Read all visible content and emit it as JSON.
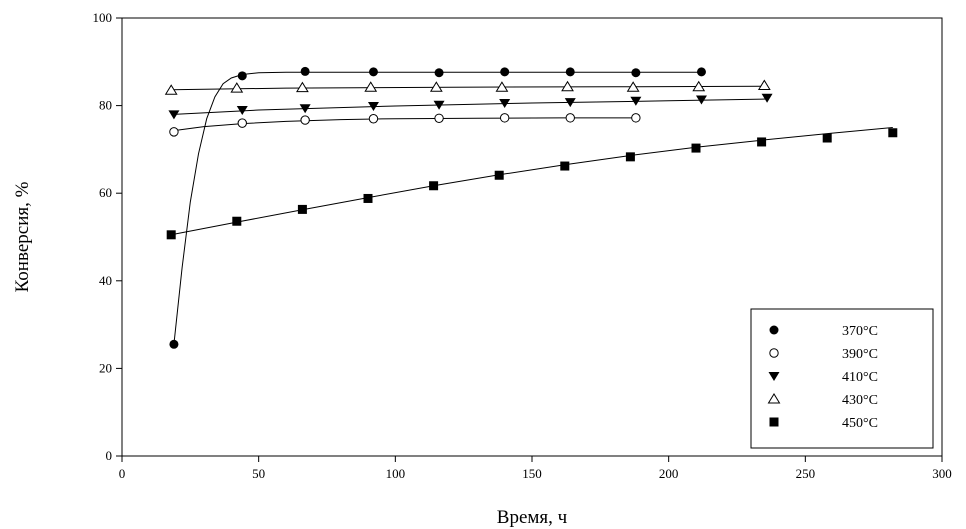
{
  "chart_data": {
    "type": "scatter",
    "title": "",
    "xlabel": "Время, ч",
    "ylabel": "Конверсия, %",
    "xlim": [
      0,
      300
    ],
    "ylim": [
      0,
      100
    ],
    "xticks": [
      0,
      50,
      100,
      150,
      200,
      250,
      300
    ],
    "yticks": [
      0,
      20,
      40,
      60,
      80,
      100
    ],
    "grid": false,
    "legend_position": "bottom-right",
    "series": [
      {
        "name": "370°C",
        "marker": "circle-filled",
        "x": [
          19,
          44,
          67,
          92,
          116,
          140,
          164,
          188,
          212
        ],
        "y": [
          25.5,
          86.8,
          87.8,
          87.7,
          87.5,
          87.7,
          87.7,
          87.5,
          87.7
        ],
        "fit_x": [
          19,
          22,
          25,
          28,
          31,
          34,
          37,
          40,
          44,
          50,
          60,
          80,
          120,
          160,
          212
        ],
        "fit_y": [
          25.5,
          43,
          58,
          69,
          77,
          82,
          85,
          86.3,
          87.1,
          87.5,
          87.6,
          87.6,
          87.6,
          87.6,
          87.6
        ]
      },
      {
        "name": "390°C",
        "marker": "circle-open",
        "x": [
          19,
          44,
          67,
          92,
          116,
          140,
          164,
          188
        ],
        "y": [
          74,
          76,
          76.7,
          77,
          77.1,
          77.2,
          77.2,
          77.2
        ],
        "fit_x": [
          19,
          30,
          44,
          60,
          80,
          100,
          130,
          160,
          188
        ],
        "fit_y": [
          74.3,
          75.2,
          75.9,
          76.4,
          76.8,
          77,
          77.1,
          77.2,
          77.2
        ]
      },
      {
        "name": "410°C",
        "marker": "triangle-down-filled",
        "x": [
          19,
          44,
          67,
          92,
          116,
          140,
          164,
          188,
          212,
          236
        ],
        "y": [
          78,
          79,
          79.4,
          79.9,
          80.2,
          80.6,
          80.8,
          81.1,
          81.4,
          81.8
        ],
        "fit_x": [
          19,
          50,
          100,
          150,
          200,
          236
        ],
        "fit_y": [
          78,
          79,
          79.9,
          80.6,
          81.1,
          81.5
        ]
      },
      {
        "name": "430°C",
        "marker": "triangle-up-open",
        "x": [
          18,
          42,
          66,
          91,
          115,
          139,
          163,
          187,
          211,
          235
        ],
        "y": [
          83.5,
          84,
          84.1,
          84.2,
          84.2,
          84.2,
          84.3,
          84.2,
          84.3,
          84.6
        ],
        "fit_x": [
          18,
          60,
          120,
          180,
          235
        ],
        "fit_y": [
          83.6,
          84,
          84.2,
          84.3,
          84.4
        ]
      },
      {
        "name": "450°C",
        "marker": "square-filled",
        "x": [
          18,
          42,
          66,
          90,
          114,
          138,
          162,
          186,
          210,
          234,
          258,
          282
        ],
        "y": [
          50.5,
          53.6,
          56.3,
          58.8,
          61.7,
          64.1,
          66.2,
          68.3,
          70.3,
          71.7,
          72.6,
          73.8
        ],
        "fit_x": [
          18,
          42,
          66,
          90,
          114,
          138,
          162,
          186,
          210,
          234,
          258,
          282
        ],
        "fit_y": [
          50.5,
          53.4,
          56.2,
          59,
          61.7,
          64.2,
          66.5,
          68.6,
          70.5,
          72.1,
          73.6,
          75
        ]
      }
    ]
  }
}
